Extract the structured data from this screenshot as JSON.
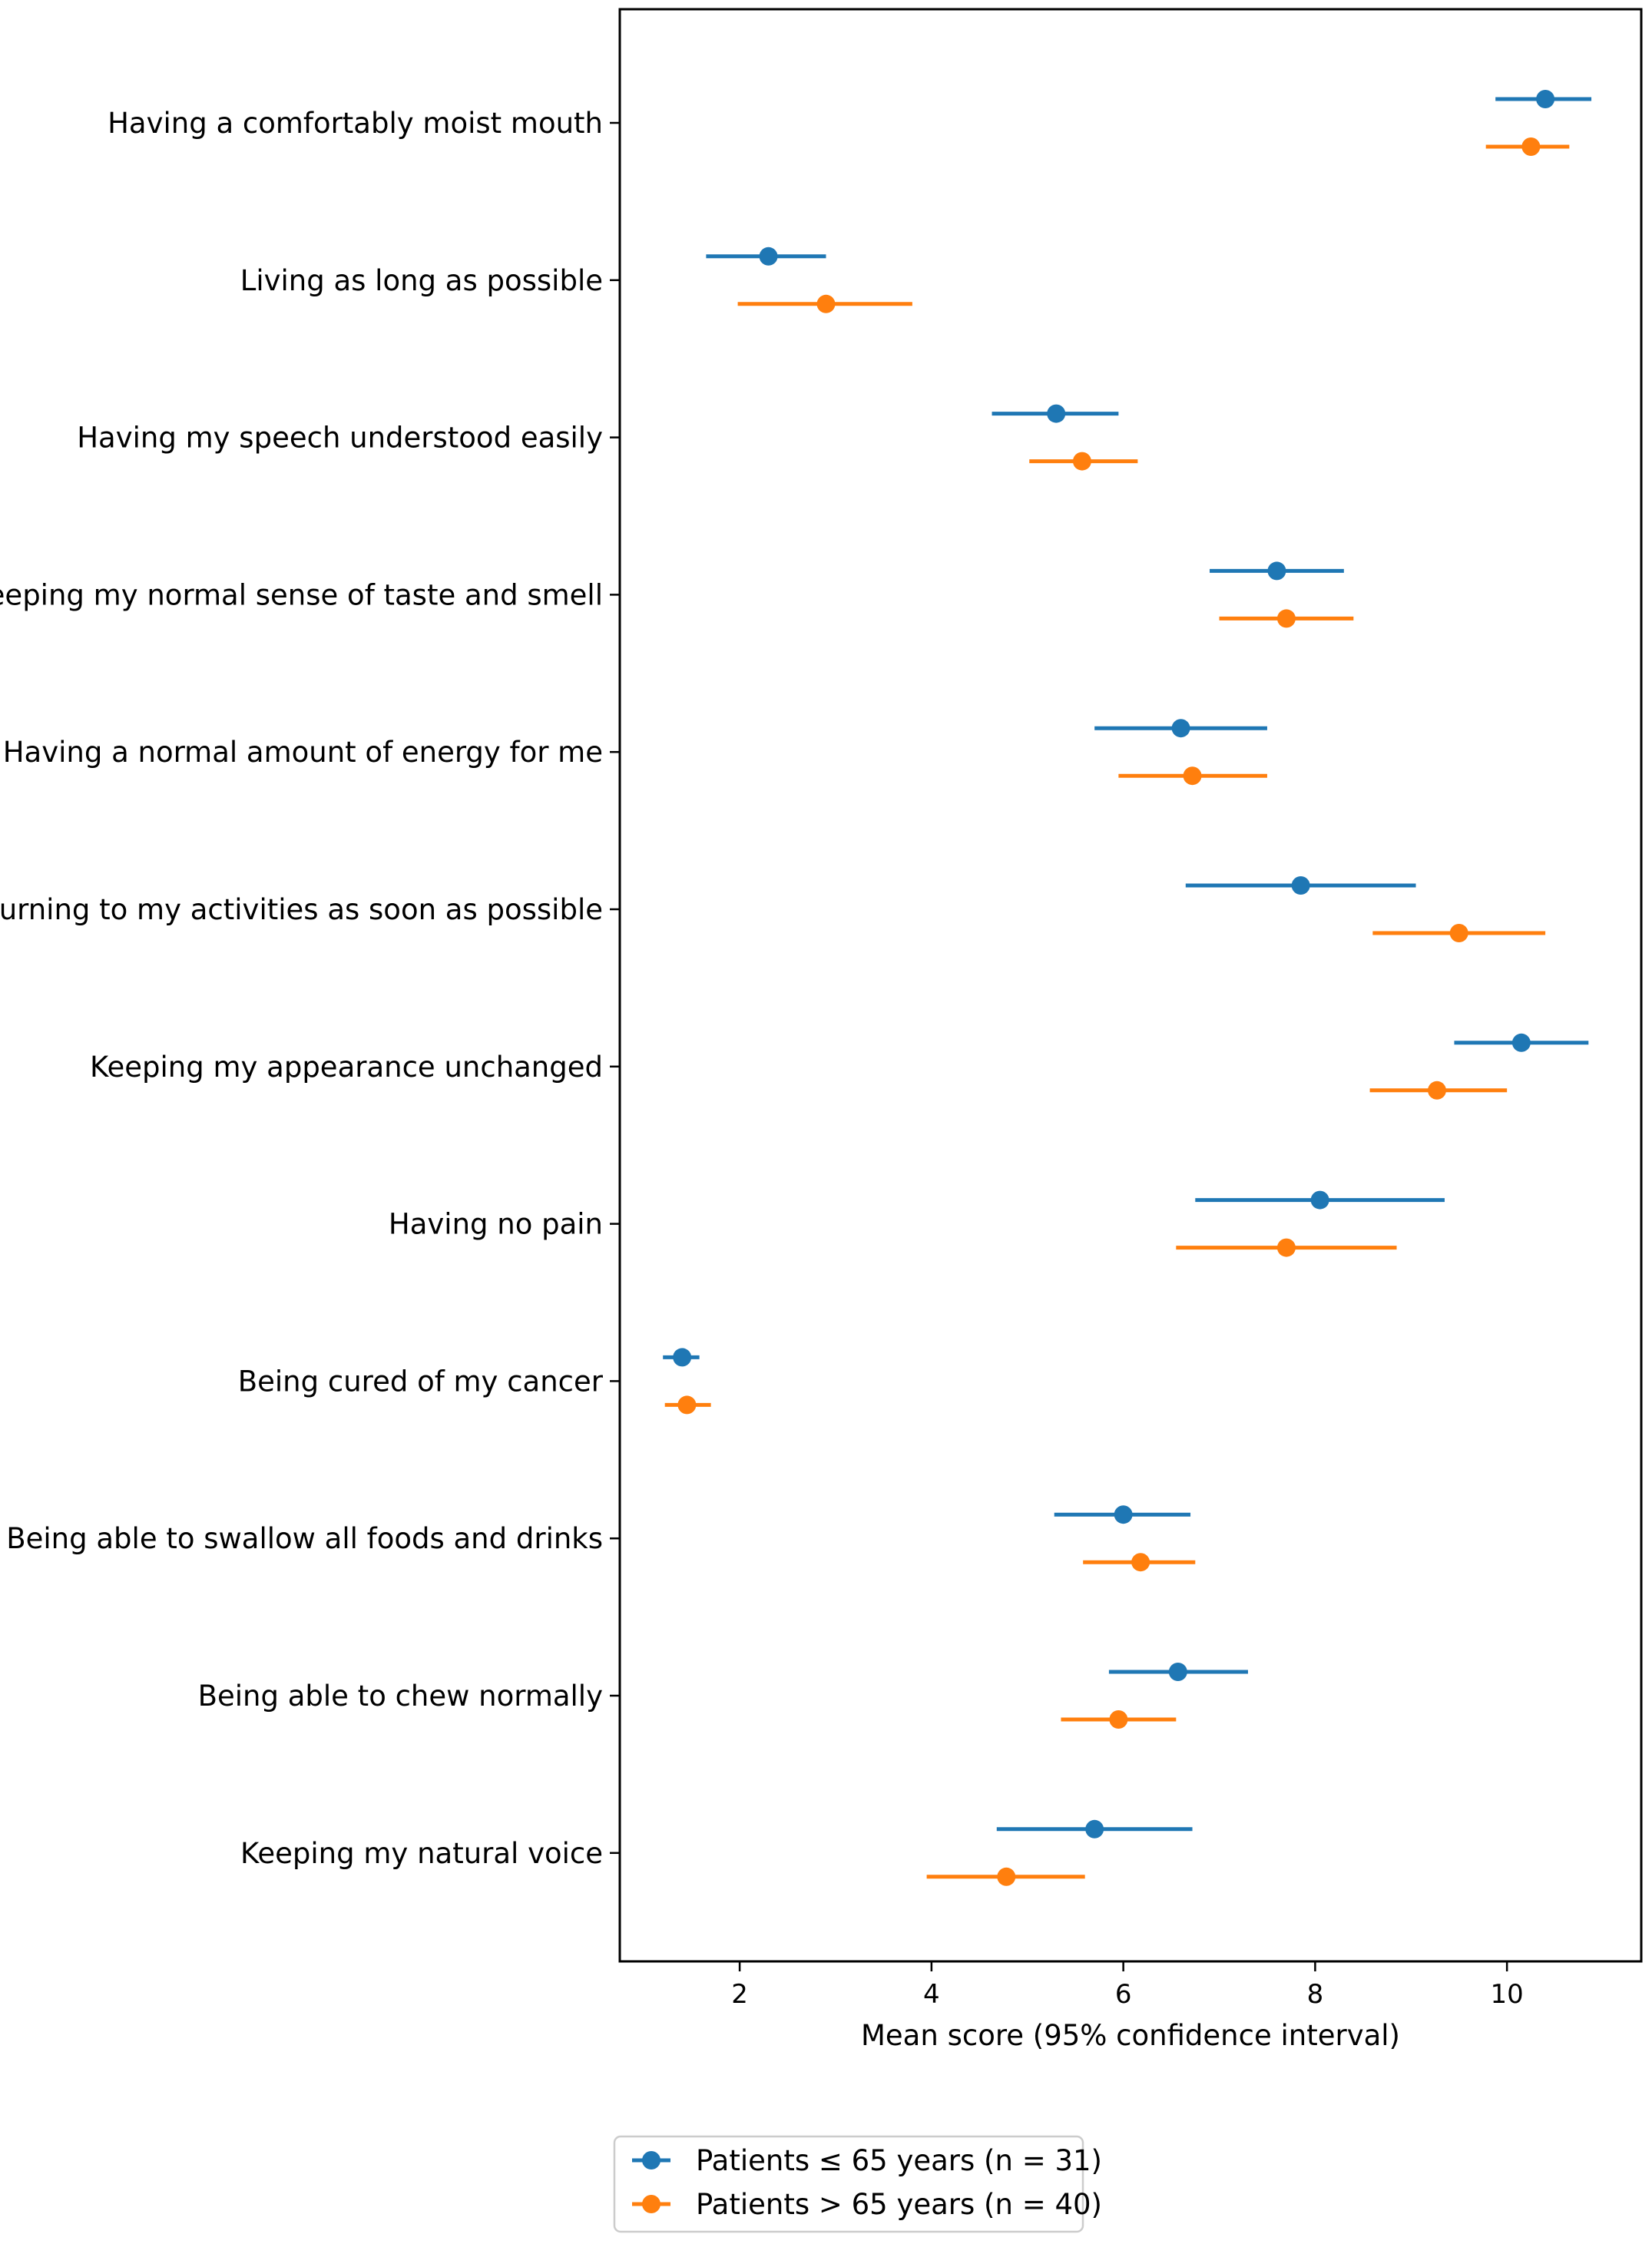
{
  "chart_data": {
    "type": "forest",
    "title": "",
    "xlabel": "Mean score (95% confidence interval)",
    "ylabel": "",
    "xlim": [
      0.75,
      11.4
    ],
    "xticks": [
      2,
      4,
      6,
      8,
      10
    ],
    "grid": false,
    "legend_position": "bottom",
    "categories": [
      "Having a comfortably moist mouth",
      "Living as long as possible",
      "Having my speech understood easily",
      "Keeping my normal sense of taste and smell",
      "Having a normal amount of energy for me",
      "Returning to my activities as soon as possible",
      "Keeping my appearance unchanged",
      "Having no pain",
      "Being cured of my cancer",
      "Being able to swallow all foods and drinks",
      "Being able to chew normally",
      "Keeping my natural voice"
    ],
    "series": [
      {
        "name": "Patients ≤ 65 years (n = 31)",
        "color": "#1f77b4",
        "values": [
          10.4,
          2.3,
          5.3,
          7.6,
          6.6,
          7.85,
          10.15,
          8.05,
          1.4,
          6.0,
          6.57,
          5.7
        ],
        "lower": [
          9.88,
          1.65,
          4.63,
          6.9,
          5.7,
          6.65,
          9.45,
          6.75,
          1.2,
          5.28,
          5.85,
          4.68
        ],
        "upper": [
          10.88,
          2.9,
          5.95,
          8.3,
          7.5,
          9.05,
          10.85,
          9.35,
          1.58,
          6.7,
          7.3,
          6.72
        ]
      },
      {
        "name": "Patients > 65 years (n = 40)",
        "color": "#ff7f0e",
        "values": [
          10.25,
          2.9,
          5.57,
          7.7,
          6.72,
          9.5,
          9.27,
          7.7,
          1.45,
          6.18,
          5.95,
          4.78
        ],
        "lower": [
          9.78,
          1.98,
          5.02,
          7.0,
          5.95,
          8.6,
          8.57,
          6.55,
          1.22,
          5.58,
          5.35,
          3.95
        ],
        "upper": [
          10.65,
          3.8,
          6.15,
          8.4,
          7.5,
          10.4,
          10.0,
          8.85,
          1.7,
          6.75,
          6.55,
          5.6
        ]
      }
    ]
  }
}
